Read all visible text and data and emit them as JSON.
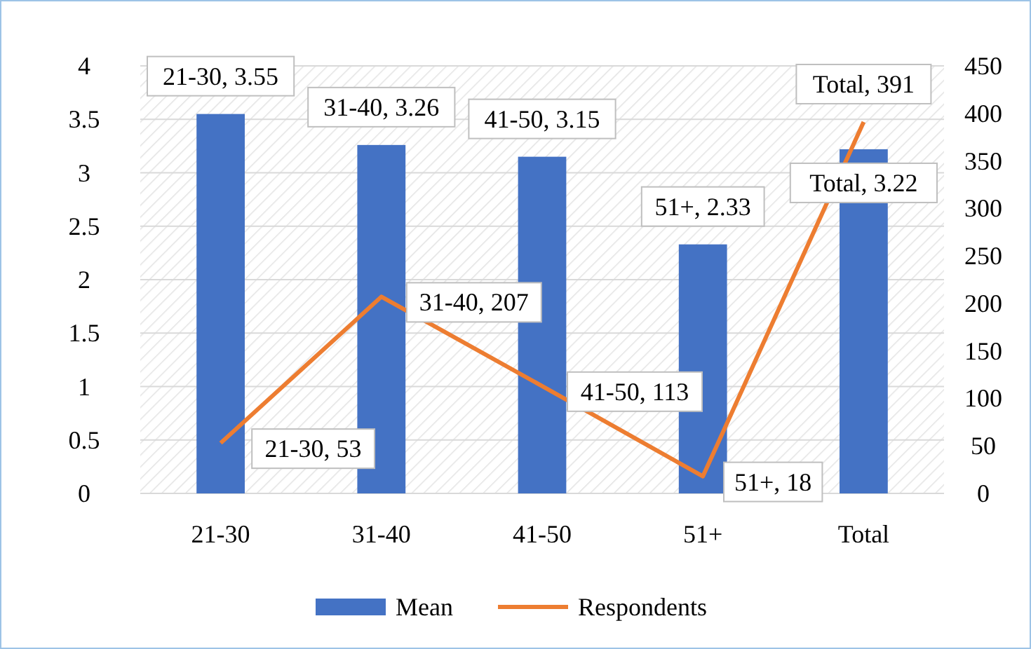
{
  "chart_data": {
    "type": "bar",
    "categories": [
      "21-30",
      "31-40",
      "41-50",
      "51+",
      "Total"
    ],
    "series": [
      {
        "name": "Mean",
        "type": "bar",
        "color": "#4472c4",
        "values": [
          3.55,
          3.26,
          3.15,
          2.33,
          3.22
        ],
        "value_labels": [
          "21-30, 3.55",
          "31-40, 3.26",
          "41-50, 3.15",
          "51+, 2.33",
          "Total, 3.22"
        ]
      },
      {
        "name": "Respondents",
        "type": "line",
        "axis": "y2",
        "color": "#ed7d31",
        "values": [
          53,
          207,
          113,
          18,
          391
        ],
        "value_labels": [
          "21-30, 53",
          "31-40, 207",
          "41-50, 113",
          "51+, 18",
          "Total, 391"
        ]
      }
    ],
    "ylim": [
      0,
      4
    ],
    "yticks": [
      0,
      0.5,
      1,
      1.5,
      2,
      2.5,
      3,
      3.5,
      4
    ],
    "y2lim": [
      0,
      450
    ],
    "y2ticks": [
      0,
      50,
      100,
      150,
      200,
      250,
      300,
      350,
      400,
      450
    ],
    "grid": "y",
    "legend": "bottom",
    "marker": "none",
    "line_style": "solid"
  }
}
